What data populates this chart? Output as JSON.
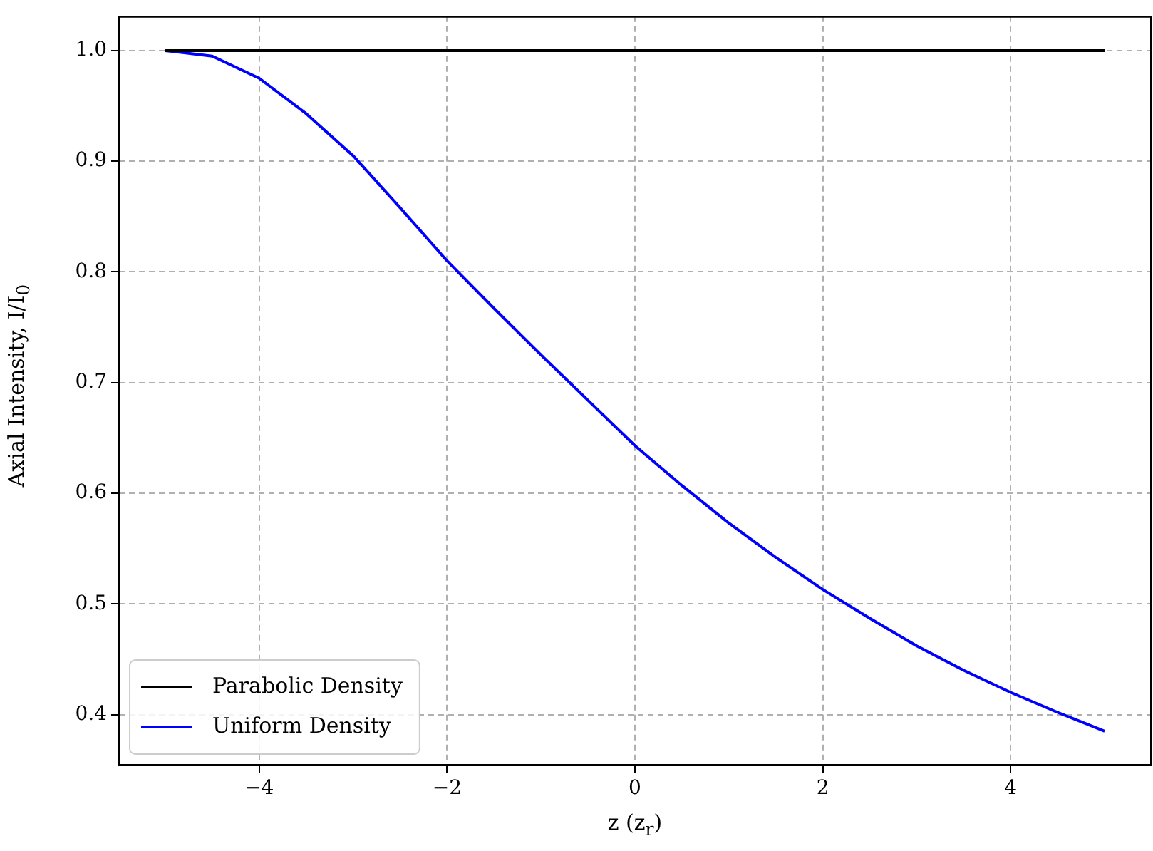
{
  "chart_data": {
    "type": "line",
    "xlabel": "z (z$_{r}$)",
    "ylabel": "Axial Intensity, I/I$_{0}$",
    "x": [
      -5,
      -4.5,
      -4,
      -3.5,
      -3,
      -2.5,
      -2,
      -1.5,
      -1,
      -0.5,
      0,
      0.5,
      1,
      1.5,
      2,
      2.5,
      3,
      3.5,
      4,
      4.5,
      5
    ],
    "series": [
      {
        "name": "Parabolic Density",
        "color": "#000000",
        "values": [
          1.0,
          1.0,
          1.0,
          1.0,
          1.0,
          1.0,
          1.0,
          1.0,
          1.0,
          1.0,
          1.0,
          1.0,
          1.0,
          1.0,
          1.0,
          1.0,
          1.0,
          1.0,
          1.0,
          1.0,
          1.0
        ]
      },
      {
        "name": "Uniform Density",
        "color": "#0000ff",
        "values": [
          1.0,
          0.995,
          0.975,
          0.943,
          0.905,
          0.858,
          0.81,
          0.767,
          0.725,
          0.684,
          0.643,
          0.607,
          0.573,
          0.542,
          0.513,
          0.487,
          0.462,
          0.44,
          0.42,
          0.402,
          0.385
        ]
      }
    ],
    "xlim": [
      -5.5,
      5.5
    ],
    "ylim": [
      0.354,
      1.031
    ],
    "xticks": [
      {
        "value": -4,
        "label": "−4"
      },
      {
        "value": -2,
        "label": "−2"
      },
      0,
      2,
      4
    ],
    "yticks": [
      0.4,
      0.5,
      0.6,
      0.7,
      0.8,
      0.9,
      {
        "value": 1,
        "label": "1.0"
      }
    ],
    "grid": true,
    "legend": "bottom left",
    "marker": "none",
    "line_style": "solid"
  }
}
